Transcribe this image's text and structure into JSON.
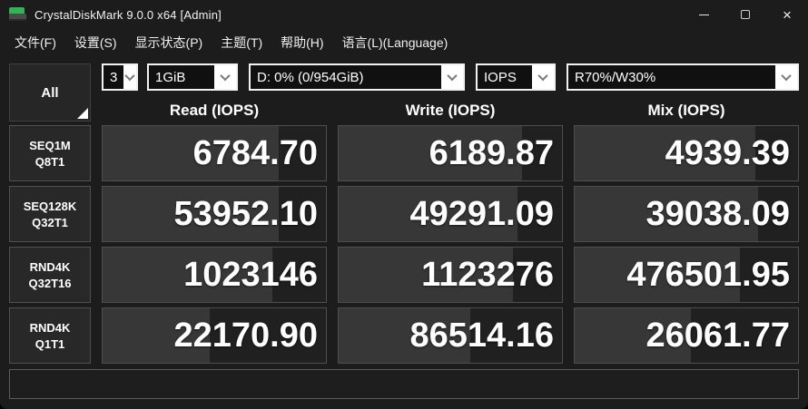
{
  "window": {
    "title": "CrystalDiskMark 9.0.0 x64 [Admin]",
    "icons": {
      "app": "crystaldiskmark-disk-icon",
      "minimize": "minimize-icon",
      "maximize": "maximize-icon",
      "close": "close-icon"
    }
  },
  "menu": {
    "items": [
      {
        "label": "文件(F)"
      },
      {
        "label": "设置(S)"
      },
      {
        "label": "显示状态(P)"
      },
      {
        "label": "主题(T)"
      },
      {
        "label": "帮助(H)"
      },
      {
        "label": "语言(L)(Language)"
      }
    ]
  },
  "toolbar": {
    "all_button_label": "All",
    "selects": {
      "test_count": {
        "value": "3"
      },
      "test_size": {
        "value": "1GiB"
      },
      "target_drive": {
        "value": "D: 0% (0/954GiB)"
      },
      "unit": {
        "value": "IOPS"
      },
      "mix_ratio": {
        "value": "R70%/W30%"
      }
    }
  },
  "table": {
    "headers": [
      "Read (IOPS)",
      "Write (IOPS)",
      "Mix (IOPS)"
    ],
    "rows": [
      {
        "label1": "SEQ1M",
        "label2": "Q8T1",
        "read": "6784.70",
        "write": "6189.87",
        "mix": "4939.39",
        "fill_read": "79%",
        "fill_write": "82%",
        "fill_mix": "81%"
      },
      {
        "label1": "SEQ128K",
        "label2": "Q32T1",
        "read": "53952.10",
        "write": "49291.09",
        "mix": "39038.09",
        "fill_read": "79%",
        "fill_write": "80%",
        "fill_mix": "82%"
      },
      {
        "label1": "RND4K",
        "label2": "Q32T16",
        "read": "1023146",
        "write": "1123276",
        "mix": "476501.95",
        "fill_read": "76%",
        "fill_write": "78%",
        "fill_mix": "74%"
      },
      {
        "label1": "RND4K",
        "label2": "Q1T1",
        "read": "22170.90",
        "write": "86514.16",
        "mix": "26061.77",
        "fill_read": "48%",
        "fill_write": "59%",
        "fill_mix": "52%"
      }
    ]
  },
  "comment_box": {
    "value": ""
  },
  "colors": {
    "icon_green": "#2fb457",
    "window_bg": "#1c1c1c",
    "cell_bar": "#373737",
    "cell_dark": "#202020",
    "value_text": "#ffffff",
    "combo_border": "#f2f2f2"
  }
}
